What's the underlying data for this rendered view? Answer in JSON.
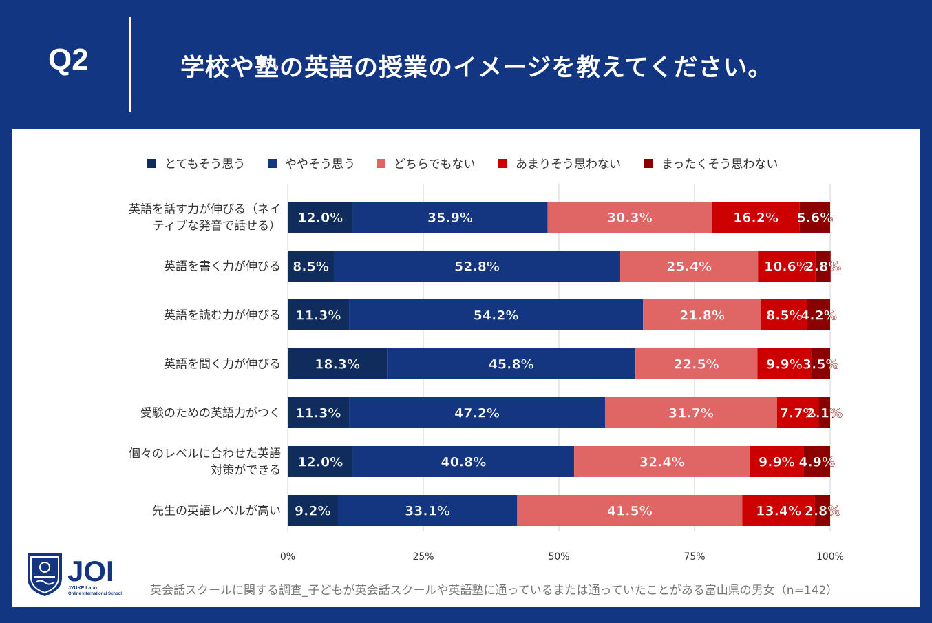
{
  "header": {
    "q_label": "Q2",
    "question": "学校や塾の英語の授業のイメージを教えてください。"
  },
  "colors": {
    "background": "#123682",
    "series": [
      "#0f2c5c",
      "#14357f",
      "#e06666",
      "#cc0000",
      "#8b0000"
    ]
  },
  "chart_data": {
    "type": "bar",
    "orientation": "horizontal-stacked-100",
    "categories": [
      [
        "英語を話す力が伸びる（ネイ",
        "ティブな発音で話せる）"
      ],
      [
        "英語を書く力が伸びる"
      ],
      [
        "英語を読む力が伸びる"
      ],
      [
        "英語を聞く力が伸びる"
      ],
      [
        "受験のための英語力がつく"
      ],
      [
        "個々のレベルに合わせた英語",
        "対策ができる"
      ],
      [
        "先生の英語レベルが高い"
      ]
    ],
    "series": [
      {
        "name": "とてもそう思う",
        "values": [
          12.0,
          8.5,
          11.3,
          18.3,
          11.3,
          12.0,
          9.2
        ],
        "labels": [
          "12.0%",
          "8.5%",
          "11.3%",
          "18.3%",
          "11.3%",
          "12.0%",
          "9.2%"
        ]
      },
      {
        "name": "ややそう思う",
        "values": [
          35.9,
          52.8,
          54.2,
          45.8,
          47.2,
          40.8,
          33.1
        ],
        "labels": [
          "35.9%",
          "52.8%",
          "54.2%",
          "45.8%",
          "47.2%",
          "40.8%",
          "33.1%"
        ]
      },
      {
        "name": "どちらでもない",
        "values": [
          30.3,
          25.4,
          21.8,
          22.5,
          31.7,
          32.4,
          41.5
        ],
        "labels": [
          "30.3%",
          "25.4%",
          "21.8%",
          "22.5%",
          "31.7%",
          "32.4%",
          "41.5%"
        ]
      },
      {
        "name": "あまりそう思わない",
        "values": [
          16.2,
          10.6,
          8.5,
          9.9,
          7.7,
          9.9,
          13.4
        ],
        "labels": [
          "16.2%",
          "10.6%",
          "8.5%",
          "9.9%",
          "7.7%",
          "9.9%",
          "13.4%"
        ]
      },
      {
        "name": "まったくそう思わない",
        "values": [
          5.6,
          2.8,
          4.2,
          3.5,
          2.1,
          4.9,
          2.8
        ],
        "labels": [
          "5.6%",
          "2.8%",
          "4.2%",
          "3.5%",
          "2.1%",
          "4.9%",
          "2.8%"
        ]
      }
    ],
    "x_ticks": [
      "0%",
      "25%",
      "50%",
      "75%",
      "100%"
    ],
    "xlim": [
      0,
      100
    ],
    "grid": true,
    "legend": "top"
  },
  "logo": {
    "name": "JOI",
    "sub1": "JYUKE Labo.",
    "sub2": "Online International School"
  },
  "source": "英会話スクールに関する調査_子どもが英会話スクールや英語塾に通っているまたは通っていたことがある富山県の男女（n=142）"
}
